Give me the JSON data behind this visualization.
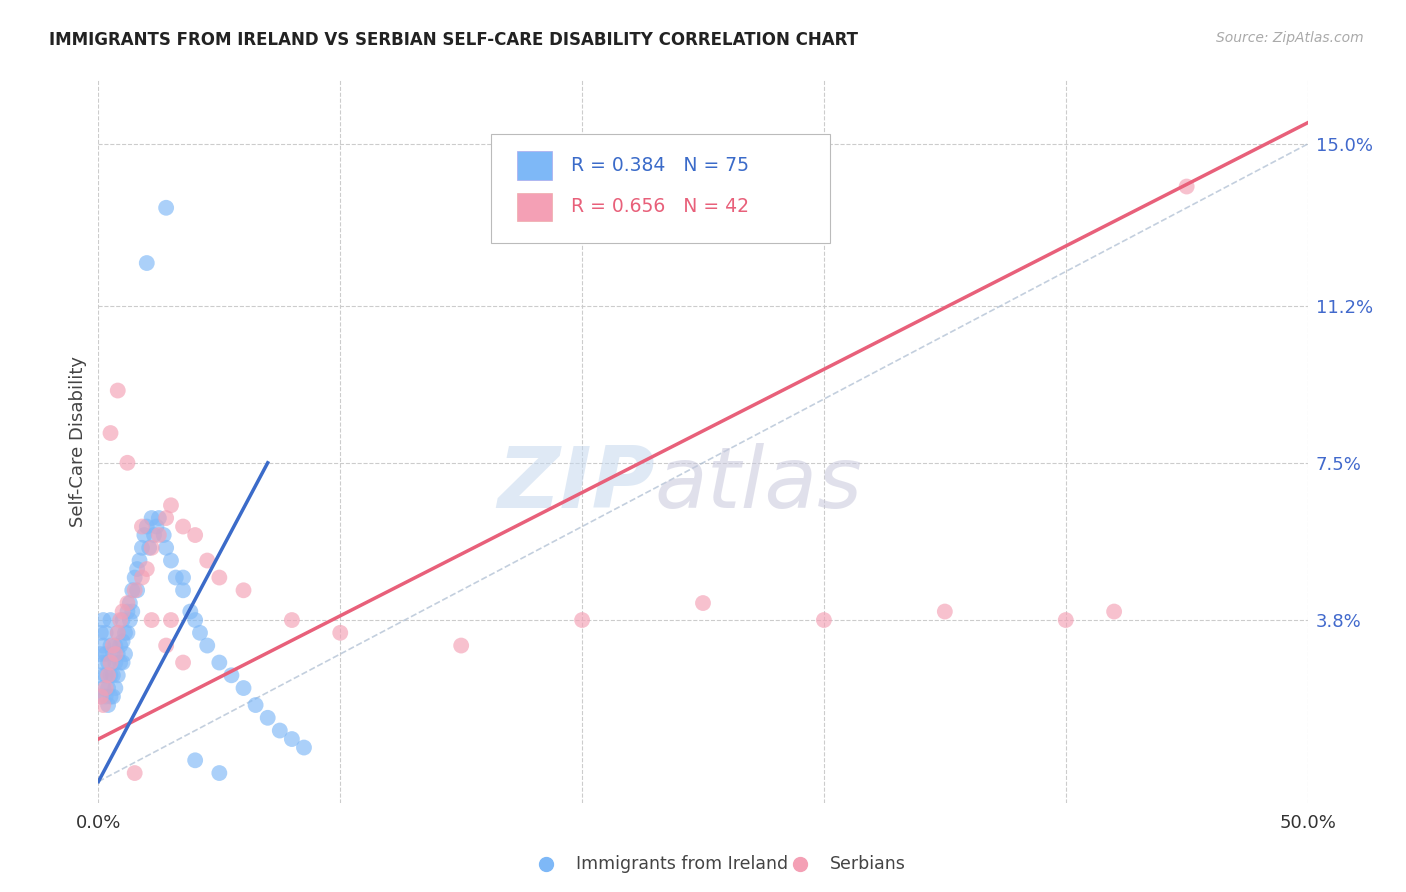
{
  "title": "IMMIGRANTS FROM IRELAND VS SERBIAN SELF-CARE DISABILITY CORRELATION CHART",
  "source": "Source: ZipAtlas.com",
  "ylabel": "Self-Care Disability",
  "xlim": [
    0.0,
    0.5
  ],
  "ylim": [
    -0.005,
    0.165
  ],
  "x_ticks": [
    0.0,
    0.1,
    0.2,
    0.3,
    0.4,
    0.5
  ],
  "x_tick_labels": [
    "0.0%",
    "",
    "",
    "",
    "",
    "50.0%"
  ],
  "y_ticks": [
    0.038,
    0.075,
    0.112,
    0.15
  ],
  "y_tick_labels": [
    "3.8%",
    "7.5%",
    "11.2%",
    "15.0%"
  ],
  "ireland_R": 0.384,
  "ireland_N": 75,
  "serbian_R": 0.656,
  "serbian_N": 42,
  "ireland_color": "#7EB8F7",
  "serbian_color": "#F4A0B5",
  "ireland_line_color": "#3B6BC9",
  "serbian_line_color": "#E8607A",
  "diagonal_color": "#AABBD0",
  "background_color": "#FFFFFF",
  "grid_color": "#CCCCCC",
  "ireland_x": [
    0.001,
    0.001,
    0.001,
    0.001,
    0.002,
    0.002,
    0.002,
    0.002,
    0.003,
    0.003,
    0.003,
    0.003,
    0.004,
    0.004,
    0.004,
    0.005,
    0.005,
    0.005,
    0.005,
    0.006,
    0.006,
    0.006,
    0.007,
    0.007,
    0.007,
    0.008,
    0.008,
    0.008,
    0.009,
    0.009,
    0.01,
    0.01,
    0.01,
    0.011,
    0.011,
    0.012,
    0.012,
    0.013,
    0.013,
    0.014,
    0.014,
    0.015,
    0.016,
    0.016,
    0.017,
    0.018,
    0.019,
    0.02,
    0.021,
    0.022,
    0.023,
    0.024,
    0.025,
    0.027,
    0.028,
    0.03,
    0.032,
    0.035,
    0.038,
    0.04,
    0.042,
    0.045,
    0.05,
    0.055,
    0.06,
    0.065,
    0.07,
    0.075,
    0.08,
    0.085,
    0.02,
    0.028,
    0.035,
    0.04,
    0.05
  ],
  "ireland_y": [
    0.03,
    0.025,
    0.035,
    0.02,
    0.028,
    0.032,
    0.022,
    0.038,
    0.025,
    0.03,
    0.02,
    0.035,
    0.022,
    0.028,
    0.018,
    0.032,
    0.025,
    0.02,
    0.038,
    0.03,
    0.025,
    0.02,
    0.032,
    0.028,
    0.022,
    0.035,
    0.03,
    0.025,
    0.032,
    0.028,
    0.038,
    0.033,
    0.028,
    0.035,
    0.03,
    0.04,
    0.035,
    0.042,
    0.038,
    0.045,
    0.04,
    0.048,
    0.05,
    0.045,
    0.052,
    0.055,
    0.058,
    0.06,
    0.055,
    0.062,
    0.058,
    0.06,
    0.062,
    0.058,
    0.055,
    0.052,
    0.048,
    0.045,
    0.04,
    0.038,
    0.035,
    0.032,
    0.028,
    0.025,
    0.022,
    0.018,
    0.015,
    0.012,
    0.01,
    0.008,
    0.122,
    0.135,
    0.048,
    0.005,
    0.002
  ],
  "serbian_x": [
    0.001,
    0.002,
    0.003,
    0.004,
    0.005,
    0.006,
    0.007,
    0.008,
    0.009,
    0.01,
    0.012,
    0.015,
    0.018,
    0.02,
    0.022,
    0.025,
    0.028,
    0.03,
    0.035,
    0.04,
    0.045,
    0.05,
    0.06,
    0.08,
    0.1,
    0.15,
    0.2,
    0.25,
    0.3,
    0.35,
    0.4,
    0.42,
    0.45,
    0.005,
    0.008,
    0.012,
    0.018,
    0.022,
    0.028,
    0.035,
    0.015,
    0.03
  ],
  "serbian_y": [
    0.02,
    0.018,
    0.022,
    0.025,
    0.028,
    0.032,
    0.03,
    0.035,
    0.038,
    0.04,
    0.042,
    0.045,
    0.048,
    0.05,
    0.055,
    0.058,
    0.062,
    0.065,
    0.06,
    0.058,
    0.052,
    0.048,
    0.045,
    0.038,
    0.035,
    0.032,
    0.038,
    0.042,
    0.038,
    0.04,
    0.038,
    0.04,
    0.14,
    0.082,
    0.092,
    0.075,
    0.06,
    0.038,
    0.032,
    0.028,
    0.002,
    0.038
  ],
  "ireland_line": [
    0.0,
    0.07,
    0.0,
    0.075
  ],
  "serbian_line": [
    0.0,
    0.5,
    0.01,
    0.155
  ]
}
